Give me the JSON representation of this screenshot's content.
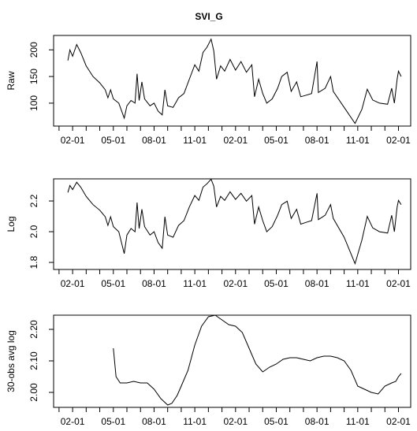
{
  "title": "SVI_G",
  "chart_data": [
    {
      "type": "line",
      "ylabel": "Raw",
      "x": [
        0.65,
        0.8,
        1.0,
        1.3,
        1.6,
        2.0,
        2.5,
        3.0,
        3.4,
        3.6,
        3.8,
        4.0,
        4.4,
        4.8,
        5.0,
        5.3,
        5.6,
        5.75,
        5.9,
        6.1,
        6.3,
        6.7,
        7.0,
        7.3,
        7.6,
        7.8,
        8.0,
        8.4,
        8.8,
        9.2,
        9.6,
        10.0,
        10.3,
        10.6,
        10.9,
        11.2,
        11.4,
        11.6,
        11.9,
        12.2,
        12.6,
        13.0,
        13.4,
        13.8,
        14.2,
        14.4,
        14.7,
        15.0,
        15.3,
        15.7,
        16.1,
        16.4,
        16.8,
        17.1,
        17.5,
        17.8,
        18.2,
        18.6,
        19.0,
        19.1,
        19.6,
        20.0,
        20.2,
        21.0,
        21.8,
        22.3,
        22.7,
        23.1,
        23.6,
        24.2,
        24.5,
        24.7,
        24.9,
        25.0,
        25.2
      ],
      "values": [
        180,
        200,
        188,
        210,
        195,
        170,
        150,
        138,
        125,
        110,
        125,
        108,
        100,
        72,
        95,
        105,
        100,
        155,
        105,
        140,
        108,
        95,
        100,
        85,
        78,
        125,
        95,
        92,
        110,
        118,
        145,
        172,
        160,
        195,
        205,
        220,
        198,
        145,
        170,
        160,
        182,
        162,
        178,
        158,
        172,
        112,
        145,
        118,
        100,
        108,
        128,
        150,
        158,
        122,
        140,
        112,
        115,
        118,
        178,
        120,
        128,
        150,
        122,
        92,
        62,
        88,
        126,
        106,
        100,
        98,
        128,
        100,
        145,
        160,
        150
      ],
      "color": "#000000",
      "xlim": [
        -0.4,
        25.9
      ],
      "xticks": [
        {
          "value": 1,
          "label": "02-01"
        },
        {
          "value": 4,
          "label": "05-01"
        },
        {
          "value": 7,
          "label": "08-01"
        },
        {
          "value": 10,
          "label": "11-01"
        },
        {
          "value": 13,
          "label": "02-01"
        },
        {
          "value": 16,
          "label": "05-01"
        },
        {
          "value": 19,
          "label": "08-01"
        },
        {
          "value": 22,
          "label": "11-01"
        },
        {
          "value": 25,
          "label": "02-01"
        }
      ],
      "xminor": [
        0,
        2,
        3,
        5,
        6,
        8,
        9,
        11,
        12,
        14,
        15,
        17,
        18,
        20,
        21,
        23,
        24
      ],
      "ylim": [
        57,
        227
      ],
      "yticks": [
        100,
        150,
        200
      ]
    },
    {
      "type": "line",
      "ylabel": "Log",
      "x": [
        0.65,
        0.8,
        1.0,
        1.3,
        1.6,
        2.0,
        2.5,
        3.0,
        3.4,
        3.6,
        3.8,
        4.0,
        4.4,
        4.8,
        5.0,
        5.3,
        5.6,
        5.75,
        5.9,
        6.1,
        6.3,
        6.7,
        7.0,
        7.3,
        7.6,
        7.8,
        8.0,
        8.4,
        8.8,
        9.2,
        9.6,
        10.0,
        10.3,
        10.6,
        10.9,
        11.2,
        11.4,
        11.6,
        11.9,
        12.2,
        12.6,
        13.0,
        13.4,
        13.8,
        14.2,
        14.4,
        14.7,
        15.0,
        15.3,
        15.7,
        16.1,
        16.4,
        16.8,
        17.1,
        17.5,
        17.8,
        18.2,
        18.6,
        19.0,
        19.1,
        19.6,
        20.0,
        20.2,
        21.0,
        21.8,
        22.3,
        22.7,
        23.1,
        23.6,
        24.2,
        24.5,
        24.7,
        24.9,
        25.0,
        25.2
      ],
      "values": [
        2.255,
        2.301,
        2.274,
        2.322,
        2.29,
        2.23,
        2.176,
        2.14,
        2.097,
        2.041,
        2.097,
        2.033,
        2.0,
        1.857,
        1.978,
        2.021,
        2.0,
        2.19,
        2.021,
        2.146,
        2.033,
        1.978,
        2.0,
        1.929,
        1.892,
        2.097,
        1.978,
        1.964,
        2.041,
        2.072,
        2.161,
        2.236,
        2.204,
        2.29,
        2.312,
        2.342,
        2.297,
        2.161,
        2.23,
        2.204,
        2.26,
        2.21,
        2.25,
        2.199,
        2.236,
        2.049,
        2.161,
        2.072,
        2.0,
        2.033,
        2.107,
        2.176,
        2.199,
        2.086,
        2.146,
        2.049,
        2.061,
        2.072,
        2.25,
        2.079,
        2.107,
        2.176,
        2.086,
        1.964,
        1.792,
        1.944,
        2.1,
        2.025,
        2.0,
        1.991,
        2.107,
        2.0,
        2.161,
        2.204,
        2.176
      ],
      "color": "#000000",
      "xlim": [
        -0.4,
        25.9
      ],
      "xticks": [
        {
          "value": 1,
          "label": "02-01"
        },
        {
          "value": 4,
          "label": "05-01"
        },
        {
          "value": 7,
          "label": "08-01"
        },
        {
          "value": 10,
          "label": "11-01"
        },
        {
          "value": 13,
          "label": "02-01"
        },
        {
          "value": 16,
          "label": "05-01"
        },
        {
          "value": 19,
          "label": "08-01"
        },
        {
          "value": 22,
          "label": "11-01"
        },
        {
          "value": 25,
          "label": "02-01"
        }
      ],
      "xminor": [
        0,
        2,
        3,
        5,
        6,
        8,
        9,
        11,
        12,
        14,
        15,
        17,
        18,
        20,
        21,
        23,
        24
      ],
      "ylim": [
        1.754,
        2.344
      ],
      "yticks": [
        {
          "value": 1.8,
          "label": "1.8"
        },
        {
          "value": 2.0,
          "label": "2.0"
        },
        {
          "value": 2.2,
          "label": "2.2"
        }
      ]
    },
    {
      "type": "line",
      "ylabel": "30-obs avg log",
      "x": [
        4.0,
        4.2,
        4.5,
        5.0,
        5.5,
        6.0,
        6.5,
        7.0,
        7.5,
        8.0,
        8.3,
        8.7,
        9.0,
        9.5,
        10.0,
        10.5,
        11.0,
        11.5,
        12.0,
        12.5,
        13.0,
        13.5,
        14.0,
        14.5,
        15.0,
        15.5,
        16.0,
        16.5,
        17.0,
        17.5,
        18.0,
        18.5,
        19.0,
        19.5,
        20.0,
        20.5,
        21.0,
        21.5,
        22.0,
        22.5,
        23.0,
        23.5,
        24.0,
        24.5,
        24.8,
        25.0,
        25.2
      ],
      "values": [
        2.14,
        2.05,
        2.03,
        2.03,
        2.035,
        2.03,
        2.03,
        2.01,
        1.98,
        1.96,
        1.965,
        1.99,
        2.02,
        2.07,
        2.15,
        2.21,
        2.24,
        2.245,
        2.23,
        2.215,
        2.21,
        2.19,
        2.14,
        2.09,
        2.065,
        2.08,
        2.09,
        2.105,
        2.11,
        2.11,
        2.105,
        2.1,
        2.11,
        2.115,
        2.115,
        2.11,
        2.1,
        2.07,
        2.02,
        2.01,
        2.0,
        1.995,
        2.02,
        2.03,
        2.035,
        2.05,
        2.06
      ],
      "color": "#000000",
      "xlim": [
        -0.4,
        25.9
      ],
      "xticks": [
        {
          "value": 1,
          "label": "02-01"
        },
        {
          "value": 4,
          "label": "05-01"
        },
        {
          "value": 7,
          "label": "08-01"
        },
        {
          "value": 10,
          "label": "11-01"
        },
        {
          "value": 13,
          "label": "02-01"
        },
        {
          "value": 16,
          "label": "05-01"
        },
        {
          "value": 19,
          "label": "08-01"
        },
        {
          "value": 22,
          "label": "11-01"
        },
        {
          "value": 25,
          "label": "02-01"
        }
      ],
      "xminor": [
        0,
        2,
        3,
        5,
        6,
        8,
        9,
        11,
        12,
        14,
        15,
        17,
        18,
        20,
        21,
        23,
        24
      ],
      "ylim": [
        1.9525,
        2.245
      ],
      "yticks": [
        {
          "value": 2.0,
          "label": "2.00"
        },
        {
          "value": 2.1,
          "label": "2.10"
        },
        {
          "value": 2.2,
          "label": "2.20"
        }
      ]
    }
  ]
}
